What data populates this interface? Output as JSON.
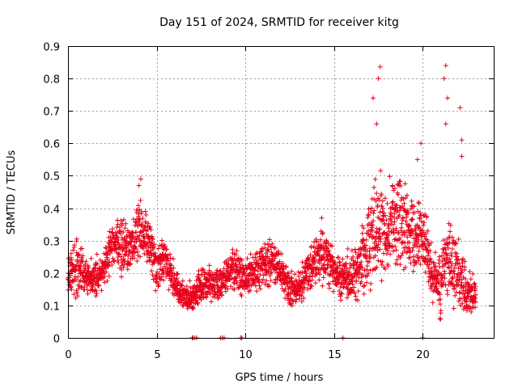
{
  "chart_data": {
    "type": "scatter",
    "title": "Day 151 of 2024, SRMTID for receiver kitg",
    "xlabel": "GPS time / hours",
    "ylabel": "SRMTID / TECUs",
    "xlim": [
      0,
      24
    ],
    "ylim": [
      0,
      0.9
    ],
    "xticks": [
      0,
      5,
      10,
      15,
      20
    ],
    "xtick_labels": [
      "0",
      "5",
      "10",
      "15",
      "20"
    ],
    "yticks": [
      0,
      0.1,
      0.2,
      0.3,
      0.4,
      0.5,
      0.6,
      0.7,
      0.8,
      0.9
    ],
    "ytick_labels": [
      "0",
      "0.1",
      "0.2",
      "0.3",
      "0.4",
      "0.5",
      "0.6",
      "0.7",
      "0.8",
      "0.9"
    ],
    "grid": true,
    "marker": "+",
    "color": "#e8001a",
    "series": [
      {
        "name": "SRMTID",
        "profile_knots_hours": [
          0,
          0.5,
          1,
          1.5,
          2,
          2.5,
          3,
          3.5,
          4,
          4.5,
          5,
          5.5,
          6,
          6.5,
          7,
          7.5,
          8,
          8.5,
          9,
          9.5,
          10,
          10.5,
          11,
          11.5,
          12,
          12.5,
          13,
          13.5,
          14,
          14.5,
          15,
          15.5,
          16,
          16.5,
          17,
          17.5,
          18,
          18.5,
          19,
          19.5,
          20,
          20.5,
          21,
          21.5,
          22,
          22.5,
          23
        ],
        "profile_median": [
          0.2,
          0.22,
          0.19,
          0.18,
          0.2,
          0.3,
          0.28,
          0.27,
          0.35,
          0.3,
          0.22,
          0.24,
          0.17,
          0.13,
          0.12,
          0.16,
          0.17,
          0.16,
          0.2,
          0.22,
          0.18,
          0.2,
          0.22,
          0.24,
          0.2,
          0.16,
          0.15,
          0.2,
          0.24,
          0.26,
          0.2,
          0.18,
          0.2,
          0.22,
          0.3,
          0.35,
          0.32,
          0.38,
          0.34,
          0.3,
          0.32,
          0.2,
          0.15,
          0.25,
          0.2,
          0.14,
          0.13
        ],
        "profile_spread": [
          0.06,
          0.07,
          0.05,
          0.05,
          0.05,
          0.07,
          0.07,
          0.06,
          0.08,
          0.07,
          0.06,
          0.06,
          0.05,
          0.04,
          0.04,
          0.05,
          0.05,
          0.04,
          0.05,
          0.06,
          0.05,
          0.05,
          0.06,
          0.06,
          0.05,
          0.05,
          0.04,
          0.05,
          0.07,
          0.07,
          0.05,
          0.05,
          0.07,
          0.08,
          0.12,
          0.14,
          0.12,
          0.12,
          0.11,
          0.1,
          0.1,
          0.07,
          0.08,
          0.12,
          0.1,
          0.05,
          0.05
        ],
        "peak_values": [
          {
            "x": 17.6,
            "y": 0.836
          },
          {
            "x": 17.5,
            "y": 0.8
          },
          {
            "x": 17.2,
            "y": 0.74
          },
          {
            "x": 17.4,
            "y": 0.66
          },
          {
            "x": 21.3,
            "y": 0.84
          },
          {
            "x": 21.2,
            "y": 0.8
          },
          {
            "x": 21.4,
            "y": 0.74
          },
          {
            "x": 21.3,
            "y": 0.66
          },
          {
            "x": 22.1,
            "y": 0.71
          },
          {
            "x": 22.2,
            "y": 0.61
          },
          {
            "x": 22.2,
            "y": 0.56
          },
          {
            "x": 4.1,
            "y": 0.49
          },
          {
            "x": 4.0,
            "y": 0.47
          },
          {
            "x": 19.9,
            "y": 0.6
          },
          {
            "x": 19.7,
            "y": 0.55
          },
          {
            "x": 14.3,
            "y": 0.37
          }
        ],
        "zero_values_hours": [
          7.0,
          7.05,
          7.15,
          7.25,
          8.6,
          8.7,
          8.8,
          9.75,
          9.8,
          15.5,
          20.0
        ]
      }
    ]
  }
}
